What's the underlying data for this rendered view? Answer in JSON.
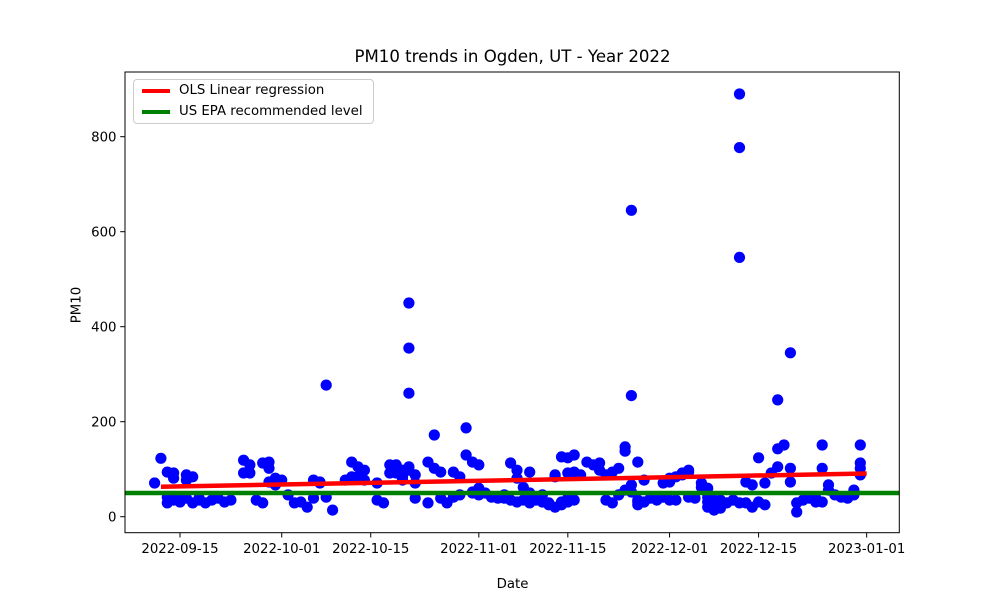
{
  "chart_data": {
    "type": "scatter",
    "title": "PM10 trends in Ogden, UT - Year 2022",
    "xlabel": "Date",
    "ylabel": "PM10",
    "point_color": "#0000ff",
    "background_color": "#ffffff",
    "grid": false,
    "legend_location": "upper left",
    "legend_entries": [
      {
        "label": "OLS Linear regression",
        "color": "#ff0000"
      },
      {
        "label": "US EPA recommended level",
        "color": "#008000"
      }
    ],
    "x_tick_labels": [
      "2022-09-15",
      "2022-10-01",
      "2022-10-15",
      "2022-11-01",
      "2022-11-15",
      "2022-12-01",
      "2022-12-15",
      "2023-01-01"
    ],
    "y_ticks": [
      0,
      200,
      400,
      600,
      800
    ],
    "xlim": [
      "2022-09-06",
      "2023-01-06"
    ],
    "ylim": [
      -34,
      936
    ],
    "epa_recommended_level": 50,
    "regression_line": {
      "start_date": "2022-09-12",
      "start_value": 63,
      "end_date": "2023-01-01",
      "end_value": 91
    },
    "points": [
      [
        "2022-09-11",
        71
      ],
      [
        "2022-09-12",
        123
      ],
      [
        "2022-09-13",
        94
      ],
      [
        "2022-09-13",
        41
      ],
      [
        "2022-09-13",
        29
      ],
      [
        "2022-09-14",
        92
      ],
      [
        "2022-09-14",
        81
      ],
      [
        "2022-09-14",
        35
      ],
      [
        "2022-09-15",
        39
      ],
      [
        "2022-09-15",
        31
      ],
      [
        "2022-09-16",
        88
      ],
      [
        "2022-09-16",
        77
      ],
      [
        "2022-09-16",
        39
      ],
      [
        "2022-09-17",
        84
      ],
      [
        "2022-09-17",
        29
      ],
      [
        "2022-09-18",
        39
      ],
      [
        "2022-09-18",
        35
      ],
      [
        "2022-09-19",
        29
      ],
      [
        "2022-09-20",
        35
      ],
      [
        "2022-09-21",
        39
      ],
      [
        "2022-09-22",
        31
      ],
      [
        "2022-09-23",
        35
      ],
      [
        "2022-09-25",
        119
      ],
      [
        "2022-09-25",
        92
      ],
      [
        "2022-09-26",
        109
      ],
      [
        "2022-09-26",
        92
      ],
      [
        "2022-09-27",
        35
      ],
      [
        "2022-09-28",
        113
      ],
      [
        "2022-09-28",
        29
      ],
      [
        "2022-09-29",
        115
      ],
      [
        "2022-09-29",
        102
      ],
      [
        "2022-09-29",
        73
      ],
      [
        "2022-09-30",
        81
      ],
      [
        "2022-09-30",
        67
      ],
      [
        "2022-10-01",
        77
      ],
      [
        "2022-10-02",
        46
      ],
      [
        "2022-10-03",
        29
      ],
      [
        "2022-10-04",
        31
      ],
      [
        "2022-10-05",
        20
      ],
      [
        "2022-10-06",
        77
      ],
      [
        "2022-10-06",
        39
      ],
      [
        "2022-10-07",
        73
      ],
      [
        "2022-10-07",
        71
      ],
      [
        "2022-10-08",
        277
      ],
      [
        "2022-10-08",
        41
      ],
      [
        "2022-10-09",
        14
      ],
      [
        "2022-10-11",
        77
      ],
      [
        "2022-10-12",
        115
      ],
      [
        "2022-10-12",
        84
      ],
      [
        "2022-10-13",
        105
      ],
      [
        "2022-10-13",
        84
      ],
      [
        "2022-10-14",
        98
      ],
      [
        "2022-10-14",
        77
      ],
      [
        "2022-10-16",
        71
      ],
      [
        "2022-10-16",
        35
      ],
      [
        "2022-10-17",
        29
      ],
      [
        "2022-10-18",
        109
      ],
      [
        "2022-10-18",
        92
      ],
      [
        "2022-10-19",
        109
      ],
      [
        "2022-10-19",
        92
      ],
      [
        "2022-10-20",
        98
      ],
      [
        "2022-10-20",
        84
      ],
      [
        "2022-10-20",
        77
      ],
      [
        "2022-10-21",
        450
      ],
      [
        "2022-10-21",
        355
      ],
      [
        "2022-10-21",
        260
      ],
      [
        "2022-10-21",
        105
      ],
      [
        "2022-10-21",
        98
      ],
      [
        "2022-10-22",
        88
      ],
      [
        "2022-10-22",
        71
      ],
      [
        "2022-10-22",
        39
      ],
      [
        "2022-10-24",
        115
      ],
      [
        "2022-10-24",
        29
      ],
      [
        "2022-10-25",
        172
      ],
      [
        "2022-10-25",
        102
      ],
      [
        "2022-10-26",
        94
      ],
      [
        "2022-10-26",
        39
      ],
      [
        "2022-10-27",
        29
      ],
      [
        "2022-10-28",
        94
      ],
      [
        "2022-10-28",
        41
      ],
      [
        "2022-10-29",
        84
      ],
      [
        "2022-10-29",
        46
      ],
      [
        "2022-10-30",
        187
      ],
      [
        "2022-10-30",
        130
      ],
      [
        "2022-10-31",
        115
      ],
      [
        "2022-10-31",
        52
      ],
      [
        "2022-10-31",
        50
      ],
      [
        "2022-11-01",
        109
      ],
      [
        "2022-11-01",
        60
      ],
      [
        "2022-11-01",
        46
      ],
      [
        "2022-11-02",
        50
      ],
      [
        "2022-11-03",
        41
      ],
      [
        "2022-11-04",
        39
      ],
      [
        "2022-11-05",
        46
      ],
      [
        "2022-11-05",
        39
      ],
      [
        "2022-11-06",
        113
      ],
      [
        "2022-11-06",
        35
      ],
      [
        "2022-11-07",
        98
      ],
      [
        "2022-11-07",
        81
      ],
      [
        "2022-11-07",
        31
      ],
      [
        "2022-11-08",
        62
      ],
      [
        "2022-11-08",
        35
      ],
      [
        "2022-11-09",
        94
      ],
      [
        "2022-11-09",
        50
      ],
      [
        "2022-11-09",
        29
      ],
      [
        "2022-11-10",
        41
      ],
      [
        "2022-11-10",
        35
      ],
      [
        "2022-11-11",
        46
      ],
      [
        "2022-11-11",
        31
      ],
      [
        "2022-11-12",
        29
      ],
      [
        "2022-11-12",
        25
      ],
      [
        "2022-11-13",
        88
      ],
      [
        "2022-11-13",
        84
      ],
      [
        "2022-11-13",
        20
      ],
      [
        "2022-11-14",
        126
      ],
      [
        "2022-11-14",
        31
      ],
      [
        "2022-11-14",
        25
      ],
      [
        "2022-11-15",
        124
      ],
      [
        "2022-11-15",
        92
      ],
      [
        "2022-11-15",
        39
      ],
      [
        "2022-11-15",
        31
      ],
      [
        "2022-11-16",
        130
      ],
      [
        "2022-11-16",
        94
      ],
      [
        "2022-11-16",
        35
      ],
      [
        "2022-11-17",
        88
      ],
      [
        "2022-11-18",
        115
      ],
      [
        "2022-11-19",
        109
      ],
      [
        "2022-11-20",
        113
      ],
      [
        "2022-11-20",
        98
      ],
      [
        "2022-11-21",
        88
      ],
      [
        "2022-11-21",
        35
      ],
      [
        "2022-11-22",
        94
      ],
      [
        "2022-11-22",
        29
      ],
      [
        "2022-11-23",
        102
      ],
      [
        "2022-11-23",
        46
      ],
      [
        "2022-11-24",
        147
      ],
      [
        "2022-11-24",
        138
      ],
      [
        "2022-11-24",
        56
      ],
      [
        "2022-11-25",
        645
      ],
      [
        "2022-11-25",
        255
      ],
      [
        "2022-11-25",
        67
      ],
      [
        "2022-11-25",
        52
      ],
      [
        "2022-11-26",
        115
      ],
      [
        "2022-11-26",
        35
      ],
      [
        "2022-11-26",
        31
      ],
      [
        "2022-11-26",
        25
      ],
      [
        "2022-11-27",
        77
      ],
      [
        "2022-11-27",
        31
      ],
      [
        "2022-11-28",
        39
      ],
      [
        "2022-11-29",
        35
      ],
      [
        "2022-11-30",
        71
      ],
      [
        "2022-11-30",
        41
      ],
      [
        "2022-12-01",
        81
      ],
      [
        "2022-12-01",
        73
      ],
      [
        "2022-12-01",
        35
      ],
      [
        "2022-12-02",
        84
      ],
      [
        "2022-12-02",
        35
      ],
      [
        "2022-12-03",
        92
      ],
      [
        "2022-12-03",
        88
      ],
      [
        "2022-12-04",
        98
      ],
      [
        "2022-12-04",
        94
      ],
      [
        "2022-12-04",
        41
      ],
      [
        "2022-12-05",
        39
      ],
      [
        "2022-12-06",
        71
      ],
      [
        "2022-12-06",
        62
      ],
      [
        "2022-12-07",
        60
      ],
      [
        "2022-12-07",
        41
      ],
      [
        "2022-12-07",
        31
      ],
      [
        "2022-12-07",
        20
      ],
      [
        "2022-12-08",
        35
      ],
      [
        "2022-12-08",
        14
      ],
      [
        "2022-12-09",
        35
      ],
      [
        "2022-12-09",
        18
      ],
      [
        "2022-12-10",
        29
      ],
      [
        "2022-12-11",
        35
      ],
      [
        "2022-12-12",
        890
      ],
      [
        "2022-12-12",
        777
      ],
      [
        "2022-12-12",
        546
      ],
      [
        "2022-12-12",
        29
      ],
      [
        "2022-12-13",
        73
      ],
      [
        "2022-12-13",
        29
      ],
      [
        "2022-12-14",
        67
      ],
      [
        "2022-12-14",
        20
      ],
      [
        "2022-12-15",
        124
      ],
      [
        "2022-12-15",
        31
      ],
      [
        "2022-12-16",
        71
      ],
      [
        "2022-12-16",
        25
      ],
      [
        "2022-12-17",
        92
      ],
      [
        "2022-12-18",
        246
      ],
      [
        "2022-12-18",
        143
      ],
      [
        "2022-12-18",
        105
      ],
      [
        "2022-12-19",
        151
      ],
      [
        "2022-12-20",
        345
      ],
      [
        "2022-12-20",
        102
      ],
      [
        "2022-12-20",
        73
      ],
      [
        "2022-12-21",
        29
      ],
      [
        "2022-12-21",
        10
      ],
      [
        "2022-12-22",
        35
      ],
      [
        "2022-12-23",
        39
      ],
      [
        "2022-12-24",
        39
      ],
      [
        "2022-12-24",
        31
      ],
      [
        "2022-12-25",
        151
      ],
      [
        "2022-12-25",
        102
      ],
      [
        "2022-12-25",
        31
      ],
      [
        "2022-12-26",
        67
      ],
      [
        "2022-12-26",
        56
      ],
      [
        "2022-12-27",
        46
      ],
      [
        "2022-12-28",
        41
      ],
      [
        "2022-12-29",
        39
      ],
      [
        "2022-12-30",
        56
      ],
      [
        "2022-12-30",
        46
      ],
      [
        "2022-12-31",
        151
      ],
      [
        "2022-12-31",
        113
      ],
      [
        "2022-12-31",
        102
      ],
      [
        "2022-12-31",
        88
      ]
    ]
  }
}
